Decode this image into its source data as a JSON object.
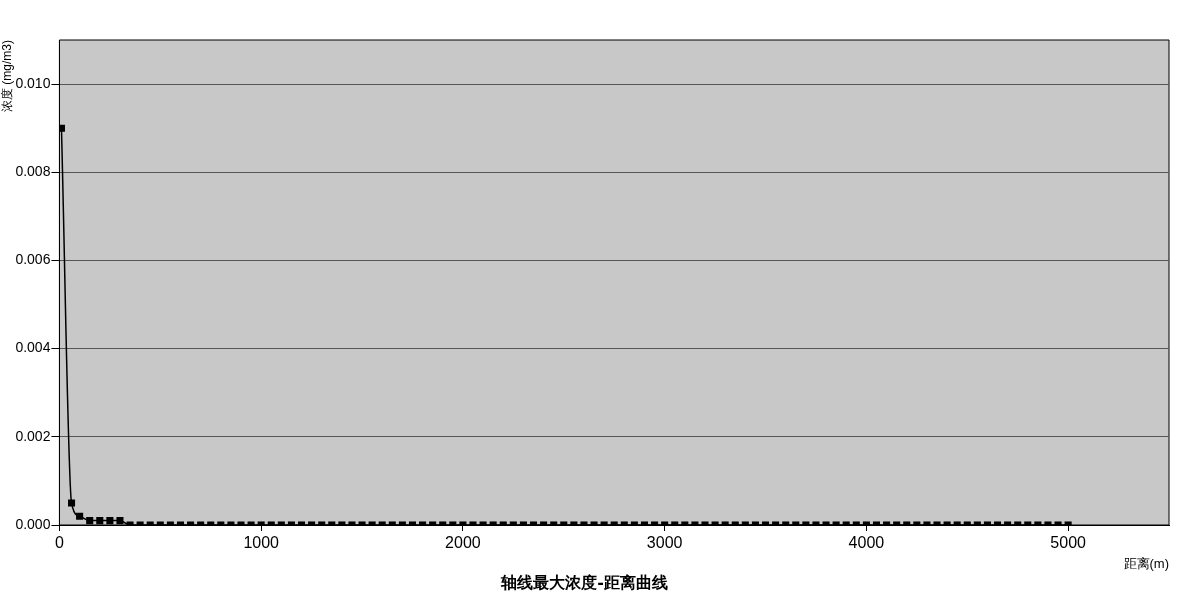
{
  "chart_data": {
    "type": "line",
    "title": "轴线最大浓度-距离曲线",
    "xlabel": "距离(m)",
    "ylabel": "浓度 (mg/m3)",
    "xlim": [
      0,
      5500
    ],
    "xticks": [
      0,
      1000,
      2000,
      3000,
      4000,
      5000
    ],
    "ylim": [
      0,
      0.011
    ],
    "yticks": [
      {
        "value": 0,
        "label": "0.000"
      },
      {
        "value": 0.002,
        "label": "0.002"
      },
      {
        "value": 0.004,
        "label": "0.004"
      },
      {
        "value": 0.006,
        "label": "0.006"
      },
      {
        "value": 0.008,
        "label": "0.008"
      },
      {
        "value": 0.01,
        "label": "0.010"
      }
    ],
    "grid": "y",
    "legend": false,
    "marker": "square",
    "line_style": "solid",
    "series": [
      {
        "color": "#000000",
        "x": [
          10,
          60,
          100,
          150,
          200,
          250,
          300,
          350,
          400,
          450,
          500,
          550,
          600,
          650,
          700,
          750,
          800,
          850,
          900,
          950,
          1000,
          1050,
          1100,
          1150,
          1200,
          1250,
          1300,
          1350,
          1400,
          1450,
          1500,
          1550,
          1600,
          1650,
          1700,
          1750,
          1800,
          1850,
          1900,
          1950,
          2000,
          2050,
          2100,
          2150,
          2200,
          2250,
          2300,
          2350,
          2400,
          2450,
          2500,
          2550,
          2600,
          2650,
          2700,
          2750,
          2800,
          2850,
          2900,
          2950,
          3000,
          3050,
          3100,
          3150,
          3200,
          3250,
          3300,
          3350,
          3400,
          3450,
          3500,
          3550,
          3600,
          3650,
          3700,
          3750,
          3800,
          3850,
          3900,
          3950,
          4000,
          4050,
          4100,
          4150,
          4200,
          4250,
          4300,
          4350,
          4400,
          4450,
          4500,
          4550,
          4600,
          4650,
          4700,
          4750,
          4800,
          4850,
          4900,
          4950,
          5000
        ],
        "values": [
          0.009,
          0.0005,
          0.0002,
          0.0001,
          0.0001,
          0.0001,
          0.0001,
          0,
          0,
          0,
          0,
          0,
          0,
          0,
          0,
          0,
          0,
          0,
          0,
          0,
          0,
          0,
          0,
          0,
          0,
          0,
          0,
          0,
          0,
          0,
          0,
          0,
          0,
          0,
          0,
          0,
          0,
          0,
          0,
          0,
          0,
          0,
          0,
          0,
          0,
          0,
          0,
          0,
          0,
          0,
          0,
          0,
          0,
          0,
          0,
          0,
          0,
          0,
          0,
          0,
          0,
          0,
          0,
          0,
          0,
          0,
          0,
          0,
          0,
          0,
          0,
          0,
          0,
          0,
          0,
          0,
          0,
          0,
          0,
          0,
          0,
          0,
          0,
          0,
          0,
          0,
          0,
          0,
          0,
          0,
          0,
          0,
          0,
          0,
          0,
          0,
          0,
          0,
          0,
          0,
          0
        ]
      }
    ]
  }
}
